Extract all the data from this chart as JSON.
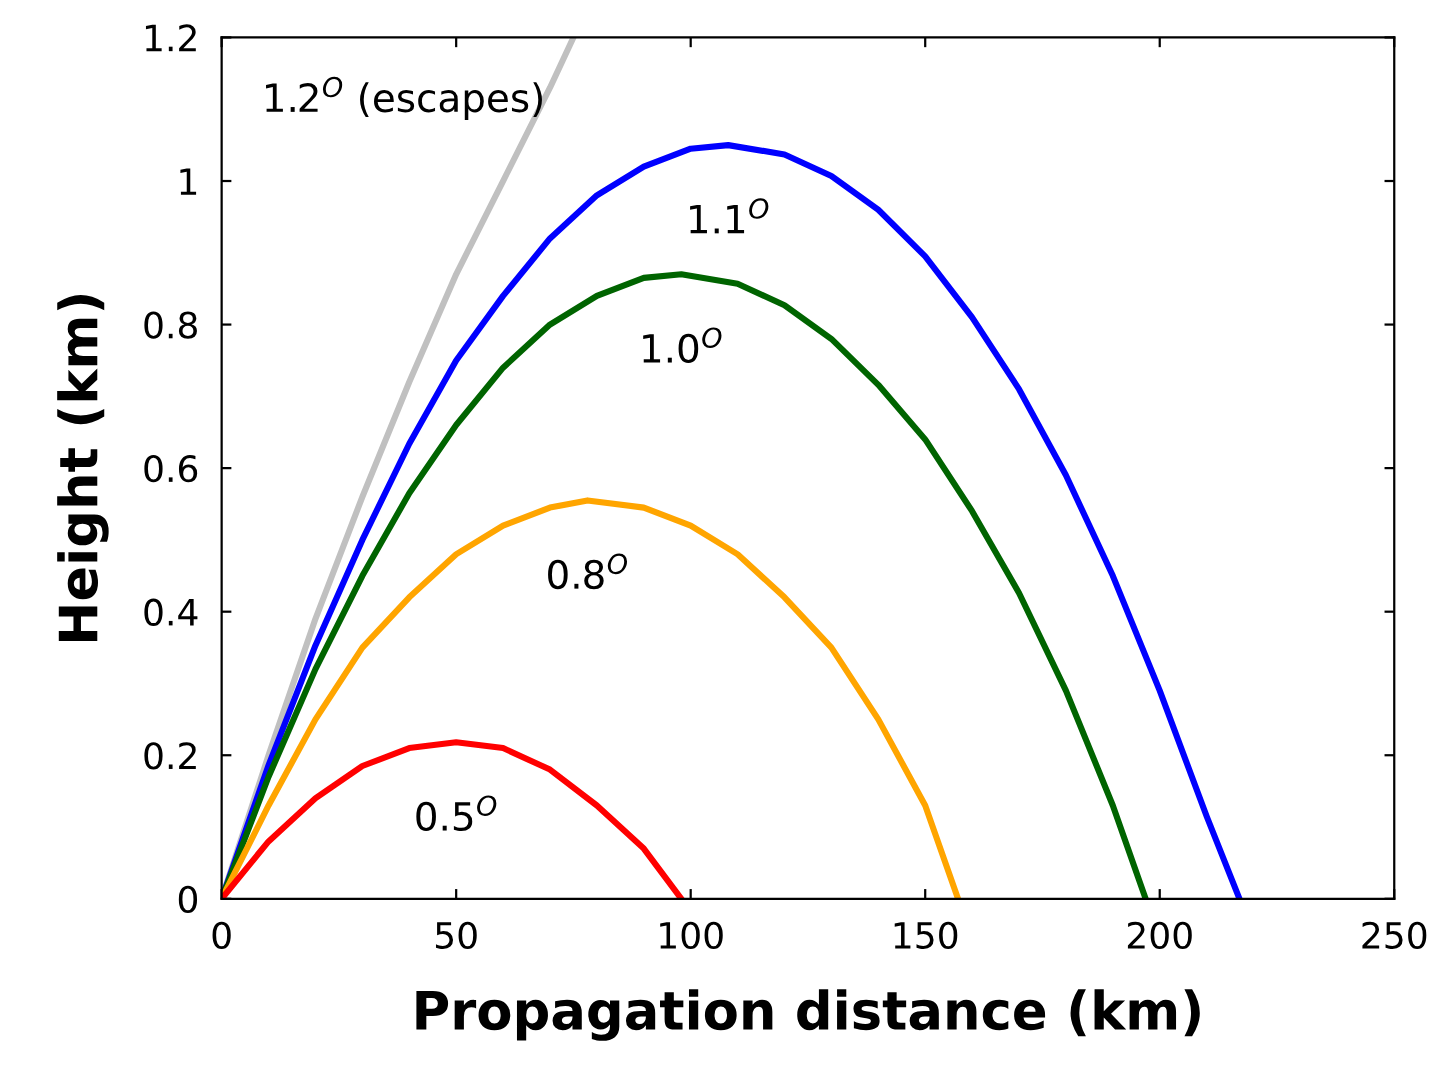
{
  "chart_data": {
    "type": "line",
    "xlabel": "Propagation distance (km)",
    "ylabel": "Height (km)",
    "xlim": [
      0,
      250
    ],
    "ylim": [
      0,
      1.2
    ],
    "xticks": [
      0,
      50,
      100,
      150,
      200,
      250
    ],
    "yticks": [
      0,
      0.2,
      0.4,
      0.6,
      0.8,
      {
        "value": 1,
        "label": "1"
      },
      1.2
    ],
    "grid": false,
    "marker": "none",
    "line_style": "solid",
    "series": [
      {
        "name": "1.2$^{O}$ (escapes)",
        "color": "#c0c0c0",
        "x": [
          0,
          10,
          20,
          30,
          40,
          50,
          60,
          70,
          75
        ],
        "values": [
          0,
          0.2,
          0.39,
          0.56,
          0.72,
          0.87,
          1.0,
          1.13,
          1.2
        ]
      },
      {
        "name": "1.1$^{O}$",
        "color": "#0000ff",
        "x": [
          0,
          10,
          20,
          30,
          40,
          50,
          60,
          70,
          80,
          90,
          100,
          108,
          120,
          130,
          140,
          150,
          160,
          170,
          180,
          190,
          200,
          210,
          217
        ],
        "values": [
          0,
          0.186,
          0.353,
          0.5,
          0.634,
          0.75,
          0.84,
          0.92,
          0.98,
          1.02,
          1.045,
          1.05,
          1.037,
          1.007,
          0.96,
          0.895,
          0.81,
          0.71,
          0.59,
          0.45,
          0.29,
          0.115,
          0
        ]
      },
      {
        "name": "1.0$^{O}$",
        "color": "#006400",
        "x": [
          0,
          10,
          20,
          30,
          40,
          50,
          60,
          70,
          80,
          90,
          98,
          110,
          120,
          130,
          140,
          150,
          160,
          170,
          180,
          190,
          197
        ],
        "values": [
          0,
          0.17,
          0.32,
          0.45,
          0.565,
          0.66,
          0.74,
          0.8,
          0.84,
          0.865,
          0.87,
          0.857,
          0.827,
          0.78,
          0.716,
          0.64,
          0.54,
          0.426,
          0.29,
          0.13,
          0
        ]
      },
      {
        "name": "0.8$^{O}$",
        "color": "#ffa500",
        "x": [
          0,
          10,
          20,
          30,
          40,
          50,
          60,
          70,
          78,
          90,
          100,
          110,
          120,
          130,
          140,
          150,
          157
        ],
        "values": [
          0,
          0.13,
          0.25,
          0.35,
          0.42,
          0.48,
          0.52,
          0.545,
          0.555,
          0.545,
          0.52,
          0.48,
          0.42,
          0.35,
          0.25,
          0.13,
          0
        ]
      },
      {
        "name": "0.5$^{O}$",
        "color": "#ff0000",
        "x": [
          0,
          10,
          20,
          30,
          40,
          50,
          60,
          70,
          80,
          90,
          98
        ],
        "values": [
          0,
          0.08,
          0.14,
          0.185,
          0.21,
          0.218,
          0.21,
          0.18,
          0.13,
          0.07,
          0
        ]
      }
    ]
  }
}
